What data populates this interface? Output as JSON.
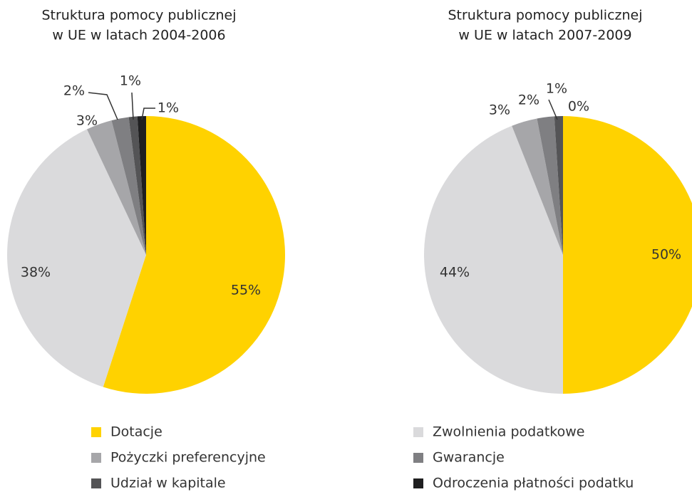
{
  "charts": [
    {
      "type": "pie",
      "title": [
        "Struktura pomocy  publicznej",
        "w UE w latach 2004-2006"
      ],
      "values": [
        55,
        38,
        3,
        2,
        1,
        1
      ],
      "value_labels": [
        "55%",
        "38%",
        "3%",
        "2%",
        "1%",
        "1%"
      ]
    },
    {
      "type": "pie",
      "title": [
        "Struktura pomocy  publicznej",
        "w UE w latach 2007-2009"
      ],
      "values": [
        50,
        44,
        3,
        2,
        1,
        0
      ],
      "value_labels": [
        "50%",
        "44%",
        "3%",
        "2%",
        "1%",
        "0%"
      ]
    }
  ],
  "legend": {
    "labels": [
      "Dotacje",
      "Zwolnienia podatkowe",
      "Pożyczki preferencyjne",
      "Gwarancje",
      "Udział w kapitale",
      "Odroczenia płatności podatku"
    ],
    "colors": [
      "#ffd200",
      "#dadadc",
      "#a6a6a9",
      "#7f7f82",
      "#545456",
      "#1f1f20"
    ]
  }
}
